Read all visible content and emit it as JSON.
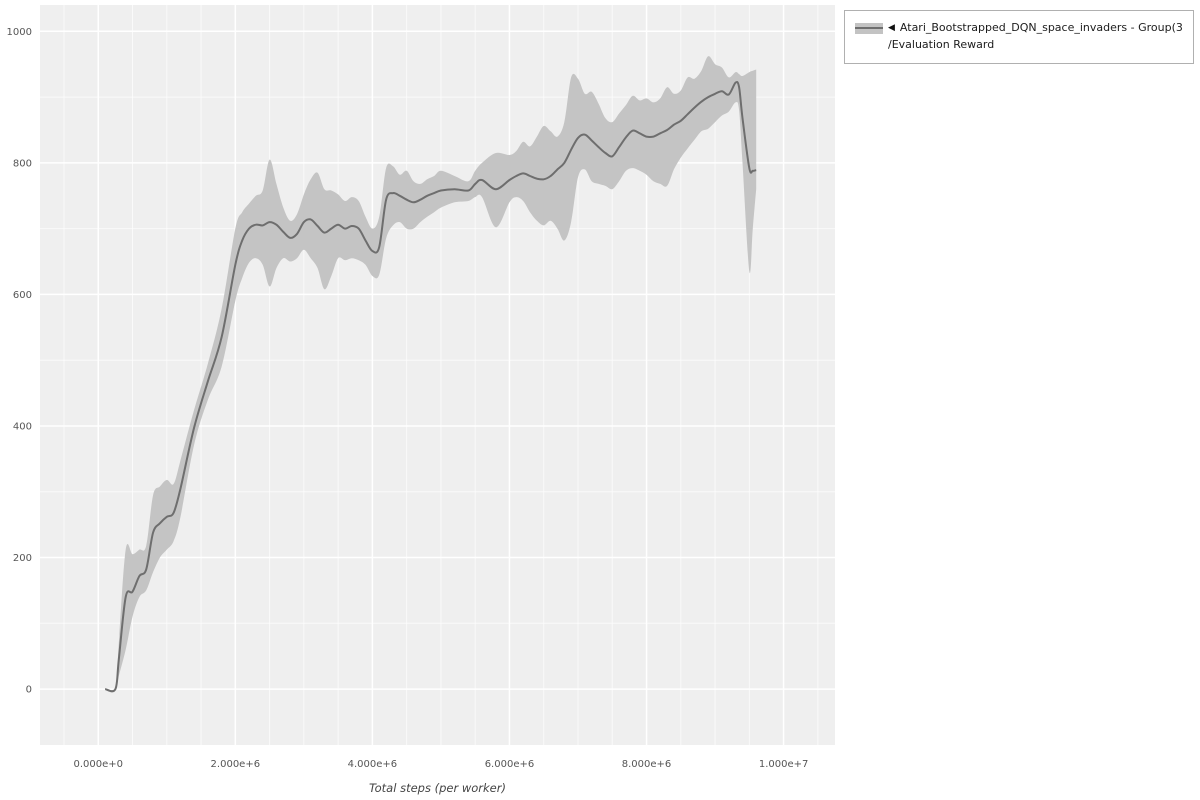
{
  "style": {
    "page_bg": "#ffffff",
    "plot_bg": "#efefef",
    "grid_major": "#ffffff",
    "grid_minor": "rgba(255,255,255,0.65)",
    "tick_text": "#555555",
    "line_color": "#6e6e6e",
    "band_color": "#c4c4c4"
  },
  "legend": {
    "marker": "◀",
    "line1": "Atari_Bootstrapped_DQN_space_invaders - Group(3)",
    "line2": "/Evaluation Reward"
  },
  "chart_data": {
    "type": "line",
    "title": "",
    "xlabel": "Total steps (per worker)",
    "ylabel": "",
    "grid": true,
    "legend_position": "top-right",
    "xlim": [
      -850000,
      10750000
    ],
    "ylim": [
      -85,
      1040
    ],
    "x_ticks": [
      {
        "value": 0,
        "label": "0.000e+0"
      },
      {
        "value": 2000000,
        "label": "2.000e+6"
      },
      {
        "value": 4000000,
        "label": "4.000e+6"
      },
      {
        "value": 6000000,
        "label": "6.000e+6"
      },
      {
        "value": 8000000,
        "label": "8.000e+6"
      },
      {
        "value": 10000000,
        "label": "1.000e+7"
      }
    ],
    "y_ticks": [
      {
        "value": 0,
        "label": "0"
      },
      {
        "value": 200,
        "label": "200"
      },
      {
        "value": 400,
        "label": "400"
      },
      {
        "value": 600,
        "label": "600"
      },
      {
        "value": 800,
        "label": "800"
      },
      {
        "value": 1000,
        "label": "1000"
      }
    ],
    "series": [
      {
        "name": "Atari_Bootstrapped_DQN_space_invaders - Group(3)/Evaluation Reward",
        "x": [
          100000,
          250000,
          300000,
          400000,
          500000,
          600000,
          700000,
          800000,
          900000,
          1000000,
          1100000,
          1200000,
          1400000,
          1600000,
          1800000,
          2000000,
          2100000,
          2200000,
          2300000,
          2400000,
          2500000,
          2600000,
          2700000,
          2800000,
          2900000,
          3000000,
          3100000,
          3200000,
          3300000,
          3400000,
          3500000,
          3600000,
          3700000,
          3800000,
          3900000,
          4000000,
          4100000,
          4200000,
          4300000,
          4400000,
          4500000,
          4600000,
          4700000,
          4800000,
          4900000,
          5000000,
          5200000,
          5400000,
          5500000,
          5600000,
          5800000,
          6000000,
          6100000,
          6200000,
          6300000,
          6400000,
          6500000,
          6600000,
          6700000,
          6800000,
          6900000,
          7000000,
          7100000,
          7200000,
          7300000,
          7400000,
          7500000,
          7600000,
          7700000,
          7800000,
          7900000,
          8000000,
          8100000,
          8200000,
          8300000,
          8400000,
          8500000,
          8600000,
          8700000,
          8800000,
          8900000,
          9000000,
          9100000,
          9200000,
          9300000,
          9350000,
          9400000,
          9500000,
          9550000,
          9600000
        ],
        "mean": [
          0,
          0,
          45,
          140,
          148,
          172,
          182,
          238,
          252,
          262,
          268,
          305,
          398,
          468,
          535,
          645,
          682,
          700,
          706,
          705,
          710,
          706,
          695,
          686,
          692,
          710,
          714,
          704,
          694,
          700,
          706,
          700,
          704,
          700,
          682,
          666,
          672,
          744,
          754,
          750,
          744,
          740,
          744,
          750,
          754,
          758,
          760,
          758,
          768,
          774,
          760,
          774,
          780,
          784,
          780,
          776,
          775,
          780,
          790,
          800,
          820,
          838,
          843,
          834,
          824,
          815,
          810,
          824,
          839,
          849,
          845,
          840,
          840,
          845,
          850,
          858,
          864,
          874,
          884,
          893,
          900,
          905,
          909,
          904,
          922,
          915,
          868,
          792,
          788,
          789
        ],
        "lower": [
          0,
          0,
          20,
          60,
          110,
          140,
          150,
          178,
          200,
          212,
          225,
          262,
          372,
          440,
          490,
          590,
          625,
          648,
          655,
          645,
          612,
          640,
          655,
          650,
          655,
          668,
          655,
          640,
          608,
          628,
          655,
          652,
          655,
          652,
          645,
          628,
          630,
          685,
          705,
          710,
          700,
          700,
          710,
          718,
          725,
          732,
          740,
          742,
          748,
          748,
          702,
          740,
          748,
          742,
          725,
          712,
          705,
          712,
          700,
          682,
          710,
          778,
          790,
          772,
          768,
          765,
          760,
          772,
          788,
          792,
          788,
          782,
          772,
          768,
          765,
          790,
          808,
          822,
          835,
          848,
          852,
          862,
          872,
          878,
          892,
          880,
          800,
          635,
          700,
          760
        ],
        "upper": [
          0,
          0,
          70,
          212,
          205,
          212,
          218,
          295,
          308,
          318,
          312,
          348,
          425,
          495,
          578,
          700,
          725,
          738,
          750,
          758,
          805,
          768,
          732,
          712,
          722,
          752,
          775,
          785,
          760,
          758,
          752,
          742,
          748,
          742,
          718,
          700,
          718,
          792,
          795,
          782,
          788,
          772,
          768,
          775,
          780,
          788,
          780,
          772,
          788,
          800,
          815,
          812,
          818,
          832,
          825,
          840,
          856,
          848,
          840,
          862,
          930,
          928,
          905,
          908,
          890,
          868,
          862,
          875,
          888,
          902,
          895,
          898,
          892,
          898,
          915,
          905,
          910,
          930,
          928,
          940,
          962,
          950,
          945,
          930,
          938,
          935,
          932,
          938,
          940,
          942
        ]
      }
    ]
  }
}
